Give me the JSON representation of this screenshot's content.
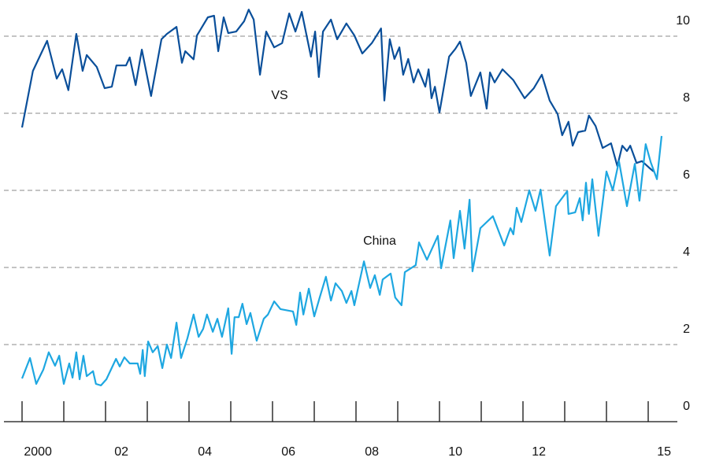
{
  "chart_data": {
    "type": "line",
    "xlim": [
      2000,
      2016
    ],
    "ylim": [
      0,
      11
    ],
    "xticks": [
      2000,
      2001,
      2002,
      2003,
      2004,
      2005,
      2006,
      2007,
      2008,
      2009,
      2010,
      2011,
      2012,
      2013,
      2014,
      2015
    ],
    "xtick_labels": [
      2000,
      {
        "value": 2002,
        "label": "02"
      },
      {
        "value": 2004,
        "label": "04"
      },
      {
        "value": 2006,
        "label": "06"
      },
      {
        "value": 2008,
        "label": "08"
      },
      {
        "value": 2010,
        "label": "10"
      },
      {
        "value": 2012,
        "label": "12"
      },
      {
        "value": 2015,
        "label": "15"
      }
    ],
    "yticks": [
      0,
      2,
      4,
      6,
      8,
      10
    ],
    "grid": true,
    "series": [
      {
        "name": "VS",
        "color": "#0a4f9a",
        "x": [
          2000.0,
          2000.26,
          2000.6,
          2000.83,
          2000.96,
          2001.11,
          2001.3,
          2001.45,
          2001.55,
          2001.79,
          2001.98,
          2002.15,
          2002.26,
          2002.49,
          2002.58,
          2002.72,
          2002.87,
          2003.09,
          2003.34,
          2003.47,
          2003.7,
          2003.83,
          2003.91,
          2004.11,
          2004.19,
          2004.45,
          2004.6,
          2004.7,
          2004.83,
          2004.94,
          2005.13,
          2005.32,
          2005.43,
          2005.55,
          2005.7,
          2005.85,
          2006.04,
          2006.23,
          2006.4,
          2006.55,
          2006.7,
          2006.92,
          2007.02,
          2007.11,
          2007.21,
          2007.4,
          2007.55,
          2007.77,
          2007.96,
          2008.15,
          2008.38,
          2008.6,
          2008.68,
          2008.81,
          2008.92,
          2009.04,
          2009.13,
          2009.25,
          2009.38,
          2009.49,
          2009.66,
          2009.74,
          2009.81,
          2009.89,
          2010.0,
          2010.23,
          2010.38,
          2010.49,
          2010.64,
          2010.75,
          2010.98,
          2011.13,
          2011.21,
          2011.32,
          2011.51,
          2011.77,
          2012.04,
          2012.26,
          2012.45,
          2012.64,
          2012.83,
          2012.94,
          2013.09,
          2013.19,
          2013.32,
          2013.49,
          2013.58,
          2013.74,
          2013.91,
          2014.11,
          2014.26,
          2014.38,
          2014.49,
          2014.57,
          2014.72,
          2014.85,
          2015.02,
          2015.13
        ],
        "values": [
          7.63,
          9.1,
          9.88,
          8.9,
          9.14,
          8.6,
          10.06,
          9.1,
          9.51,
          9.2,
          8.65,
          8.69,
          9.24,
          9.24,
          9.45,
          8.73,
          9.65,
          8.45,
          9.92,
          10.06,
          10.24,
          9.31,
          9.61,
          9.4,
          10.02,
          10.49,
          10.53,
          9.61,
          10.49,
          10.08,
          10.12,
          10.39,
          10.69,
          10.43,
          9.0,
          10.12,
          9.71,
          9.82,
          10.59,
          10.12,
          10.63,
          9.47,
          10.12,
          8.94,
          10.12,
          10.43,
          9.92,
          10.33,
          10.02,
          9.55,
          9.82,
          10.2,
          8.33,
          9.92,
          9.41,
          9.71,
          9.0,
          9.41,
          8.8,
          9.14,
          8.69,
          9.14,
          8.39,
          8.69,
          8.02,
          9.47,
          9.67,
          9.86,
          9.31,
          8.45,
          9.06,
          8.12,
          9.06,
          8.8,
          9.14,
          8.86,
          8.39,
          8.65,
          9.0,
          8.33,
          7.98,
          7.43,
          7.78,
          7.16,
          7.51,
          7.55,
          7.94,
          7.67,
          7.1,
          7.22,
          6.63,
          7.16,
          7.02,
          7.16,
          6.71,
          6.76,
          6.59,
          6.49
        ]
      },
      {
        "name": "China",
        "color": "#1ea7e1",
        "x": [
          2000.0,
          2000.19,
          2000.34,
          2000.51,
          2000.64,
          2000.79,
          2000.89,
          2001.0,
          2001.13,
          2001.21,
          2001.3,
          2001.38,
          2001.47,
          2001.55,
          2001.7,
          2001.77,
          2001.89,
          2002.02,
          2002.25,
          2002.34,
          2002.45,
          2002.58,
          2002.77,
          2002.83,
          2002.89,
          2002.94,
          2003.02,
          2003.13,
          2003.25,
          2003.36,
          2003.47,
          2003.57,
          2003.7,
          2003.81,
          2003.96,
          2004.11,
          2004.23,
          2004.34,
          2004.43,
          2004.57,
          2004.68,
          2004.79,
          2004.94,
          2005.02,
          2005.09,
          2005.19,
          2005.28,
          2005.38,
          2005.47,
          2005.62,
          2005.79,
          2005.89,
          2006.04,
          2006.19,
          2006.49,
          2006.57,
          2006.66,
          2006.74,
          2006.87,
          2007.0,
          2007.13,
          2007.28,
          2007.4,
          2007.51,
          2007.66,
          2007.77,
          2007.89,
          2007.96,
          2008.19,
          2008.34,
          2008.45,
          2008.57,
          2008.64,
          2008.83,
          2008.94,
          2009.09,
          2009.17,
          2009.43,
          2009.51,
          2009.7,
          2009.96,
          2010.04,
          2010.26,
          2010.34,
          2010.49,
          2010.6,
          2010.72,
          2010.79,
          2010.98,
          2011.28,
          2011.55,
          2011.7,
          2011.77,
          2011.85,
          2011.96,
          2012.15,
          2012.3,
          2012.42,
          2012.64,
          2012.79,
          2013.06,
          2013.09,
          2013.25,
          2013.36,
          2013.43,
          2013.51,
          2013.58,
          2013.66,
          2013.81,
          2014.0,
          2014.15,
          2014.3,
          2014.49,
          2014.68,
          2014.79,
          2014.94,
          2015.06,
          2015.21,
          2015.32
        ],
        "values": [
          1.12,
          1.65,
          0.98,
          1.35,
          1.8,
          1.45,
          1.71,
          0.98,
          1.51,
          1.14,
          1.8,
          1.1,
          1.71,
          1.18,
          1.31,
          0.98,
          0.94,
          1.1,
          1.63,
          1.43,
          1.67,
          1.51,
          1.51,
          1.24,
          1.86,
          1.18,
          2.08,
          1.8,
          1.96,
          1.39,
          2.0,
          1.65,
          2.57,
          1.65,
          2.16,
          2.78,
          2.2,
          2.41,
          2.78,
          2.33,
          2.67,
          2.2,
          2.94,
          1.76,
          2.71,
          2.71,
          3.06,
          2.53,
          2.82,
          2.1,
          2.67,
          2.78,
          3.12,
          2.92,
          2.86,
          2.51,
          3.35,
          2.78,
          3.45,
          2.73,
          3.22,
          3.76,
          3.14,
          3.59,
          3.39,
          3.08,
          3.39,
          3.02,
          4.16,
          3.47,
          3.8,
          3.29,
          3.69,
          3.84,
          3.22,
          3.02,
          3.88,
          4.06,
          4.65,
          4.2,
          4.82,
          3.98,
          5.22,
          4.24,
          5.47,
          4.49,
          5.76,
          3.9,
          5.02,
          5.33,
          4.57,
          5.02,
          4.86,
          5.55,
          5.18,
          6.0,
          5.47,
          6.02,
          4.31,
          5.59,
          5.98,
          5.39,
          5.43,
          5.8,
          5.22,
          6.2,
          5.39,
          6.29,
          4.82,
          6.49,
          6.0,
          6.76,
          5.59,
          6.69,
          5.73,
          7.2,
          6.73,
          6.29,
          7.41
        ]
      }
    ]
  }
}
